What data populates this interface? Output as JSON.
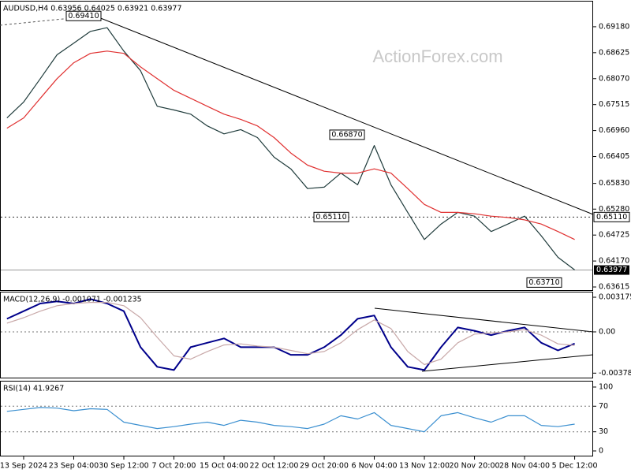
{
  "chart_data": [
    {
      "type": "line",
      "title": "AUDUSD,H4  0.63956 0.64025 0.63921 0.63977",
      "watermark": "ActionForex.com",
      "ylim": [
        0.63548,
        0.69718
      ],
      "yticks": [
        {
          "value": 0.6918,
          "label": "0.69180"
        },
        {
          "value": 0.68625,
          "label": "0.68625"
        },
        {
          "value": 0.6807,
          "label": "0.68070"
        },
        {
          "value": 0.67515,
          "label": "0.67515"
        },
        {
          "value": 0.6696,
          "label": "0.66960"
        },
        {
          "value": 0.66405,
          "label": "0.66405"
        },
        {
          "value": 0.6583,
          "label": "0.65830"
        },
        {
          "value": 0.6528,
          "label": "0.65280"
        },
        {
          "value": 0.64725,
          "label": "0.64725"
        },
        {
          "value": 0.6417,
          "label": "0.64170"
        },
        {
          "value": 0.63615,
          "label": "0.63615"
        }
      ],
      "series": [
        {
          "color": "#1f3b3b",
          "values": [
            0.6723,
            0.6757,
            0.6807,
            0.6858,
            0.6883,
            0.6908,
            0.6916,
            0.6866,
            0.6824,
            0.6748,
            0.674,
            0.6731,
            0.6706,
            0.6689,
            0.6698,
            0.6681,
            0.6639,
            0.6614,
            0.6572,
            0.6575,
            0.6605,
            0.658,
            0.6664,
            0.658,
            0.6521,
            0.6463,
            0.6496,
            0.6521,
            0.6513,
            0.648,
            0.6496,
            0.6513,
            0.6471,
            0.6425,
            0.6398
          ]
        },
        {
          "color": "#e03030",
          "values": [
            0.6701,
            0.6723,
            0.6765,
            0.6807,
            0.6841,
            0.6861,
            0.6866,
            0.6861,
            0.6832,
            0.6807,
            0.6782,
            0.6765,
            0.6748,
            0.6731,
            0.672,
            0.6706,
            0.6681,
            0.6648,
            0.6622,
            0.6609,
            0.6605,
            0.6605,
            0.6614,
            0.6605,
            0.6572,
            0.6538,
            0.6521,
            0.6521,
            0.6518,
            0.6513,
            0.651,
            0.6505,
            0.6496,
            0.648,
            0.6463
          ]
        }
      ],
      "level": {
        "value": 0.6511,
        "label": "0.65110"
      },
      "last_price": {
        "value": 0.63977,
        "label": "0.63977"
      },
      "annotations": [
        {
          "value": 0.6941,
          "label": "0.69410"
        },
        {
          "value": 0.6687,
          "label": "0.66870"
        },
        {
          "value": 0.6511,
          "label": "0.65110"
        },
        {
          "value": 0.6371,
          "label": "0.63710"
        }
      ]
    },
    {
      "type": "line",
      "title": "MACD(12,26,9) -0.001071 -0.001235",
      "ylim": [
        -0.00419,
        0.00361
      ],
      "yticks": [
        0.003175,
        {
          "value": 0,
          "label": "0.00"
        },
        -0.00378
      ],
      "levels": [
        0
      ],
      "series": [
        {
          "color": "#00008b",
          "values": [
            0.0012,
            0.0019,
            0.0026,
            0.0028,
            0.0026,
            0.003,
            0.0026,
            0.0019,
            -0.0014,
            -0.0032,
            -0.0035,
            -0.0014,
            -0.001,
            -0.0006,
            -0.0014,
            -0.0014,
            -0.0014,
            -0.0021,
            -0.0021,
            -0.0014,
            -0.0003,
            0.0012,
            0.0015,
            -0.0014,
            -0.0032,
            -0.0035,
            -0.0014,
            0.0004,
            0.0001,
            -0.0003,
            0.0001,
            0.0004,
            -0.001,
            -0.0017,
            -0.001071
          ]
        },
        {
          "color": "#c8a8a8",
          "values": [
            0.0008,
            0.0013,
            0.0019,
            0.0024,
            0.0026,
            0.0027,
            0.0027,
            0.0024,
            0.0013,
            -0.0005,
            -0.0022,
            -0.0025,
            -0.0018,
            -0.0012,
            -0.0011,
            -0.0013,
            -0.0014,
            -0.0017,
            -0.002,
            -0.0018,
            -0.001,
            0.0002,
            0.0011,
            0.0003,
            -0.0018,
            -0.003,
            -0.0025,
            -0.001,
            -0.0002,
            -0.0001,
            0,
            0.0002,
            -0.0003,
            -0.0011,
            -0.001235
          ]
        }
      ]
    },
    {
      "type": "line",
      "title": "RSI(14) 41.9267",
      "ylim": [
        -7.4,
        108.6
      ],
      "yticks": [
        100,
        70,
        30,
        0
      ],
      "levels": [
        70,
        30
      ],
      "series": [
        {
          "color": "#3a8fd0",
          "values": [
            62,
            65,
            68,
            67,
            63,
            66,
            65,
            45,
            40,
            35,
            38,
            42,
            45,
            40,
            48,
            45,
            40,
            38,
            35,
            42,
            55,
            50,
            60,
            40,
            35,
            30,
            55,
            60,
            52,
            45,
            55,
            55,
            40,
            38,
            41.9267
          ]
        }
      ],
      "categories": [
        null,
        "13 Sep 2024",
        null,
        null,
        "23 Sep 04:00",
        null,
        null,
        "30 Sep 12:00",
        null,
        null,
        "7 Oct 20:00",
        null,
        null,
        "15 Oct 04:00",
        null,
        null,
        "22 Oct 12:00",
        null,
        null,
        "29 Oct 20:00",
        null,
        null,
        "6 Nov 04:00",
        null,
        null,
        "13 Nov 12:00",
        null,
        null,
        "20 Nov 20:00",
        null,
        null,
        "28 Nov 04:00",
        null,
        null,
        "5 Dec 12:00"
      ]
    }
  ]
}
